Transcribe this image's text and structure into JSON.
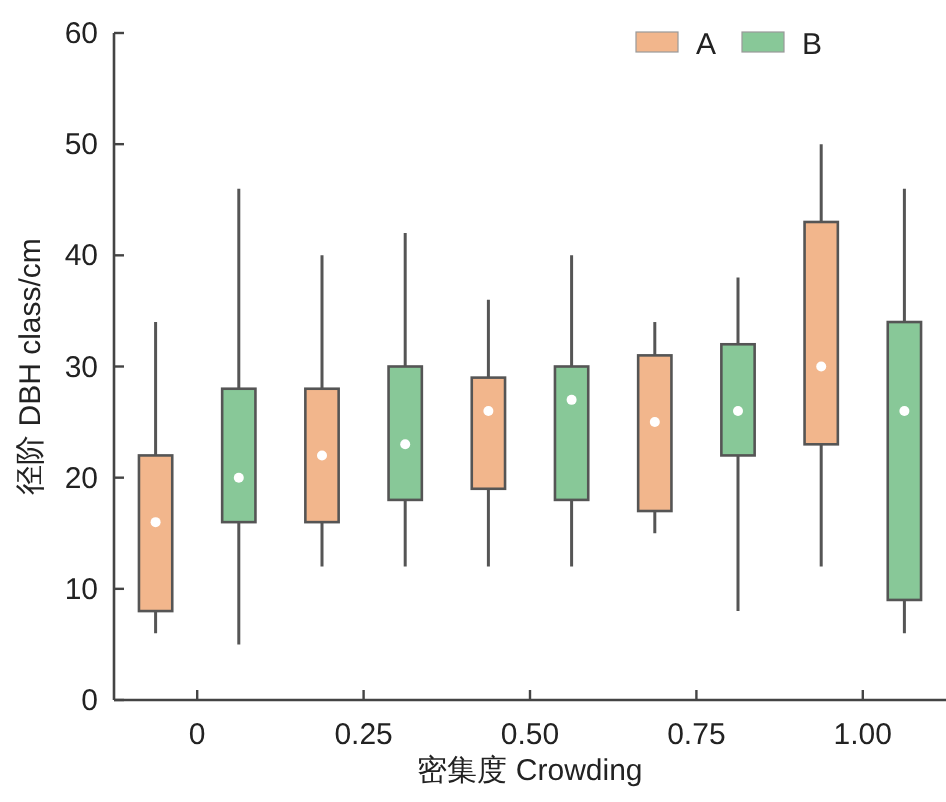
{
  "chart_data": {
    "type": "box",
    "xlabel": "密集度 Crowding",
    "ylabel": "径阶 DBH class/cm",
    "categories": [
      "0",
      "0.25",
      "0.50",
      "0.75",
      "1.00"
    ],
    "ylim": [
      0,
      60
    ],
    "yticks": [
      0,
      10,
      20,
      30,
      40,
      50,
      60
    ],
    "legend": "top right",
    "grid": false,
    "series": [
      {
        "name": "A",
        "color": "#f2b68c",
        "boxes": [
          {
            "low": 6,
            "q1": 8,
            "median": 16,
            "q3": 22,
            "high": 34
          },
          {
            "low": 12,
            "q1": 16,
            "median": 22,
            "q3": 28,
            "high": 40
          },
          {
            "low": 12,
            "q1": 19,
            "median": 26,
            "q3": 29,
            "high": 36
          },
          {
            "low": 15,
            "q1": 17,
            "median": 25,
            "q3": 31,
            "high": 34
          },
          {
            "low": 12,
            "q1": 23,
            "median": 30,
            "q3": 43,
            "high": 50
          }
        ]
      },
      {
        "name": "B",
        "color": "#88c898",
        "boxes": [
          {
            "low": 5,
            "q1": 16,
            "median": 20,
            "q3": 28,
            "high": 46
          },
          {
            "low": 12,
            "q1": 18,
            "median": 23,
            "q3": 30,
            "high": 42
          },
          {
            "low": 12,
            "q1": 18,
            "median": 27,
            "q3": 30,
            "high": 40
          },
          {
            "low": 8,
            "q1": 22,
            "median": 26,
            "q3": 32,
            "high": 38
          },
          {
            "low": 6,
            "q1": 9,
            "median": 26,
            "q3": 34,
            "high": 46
          }
        ]
      }
    ]
  }
}
